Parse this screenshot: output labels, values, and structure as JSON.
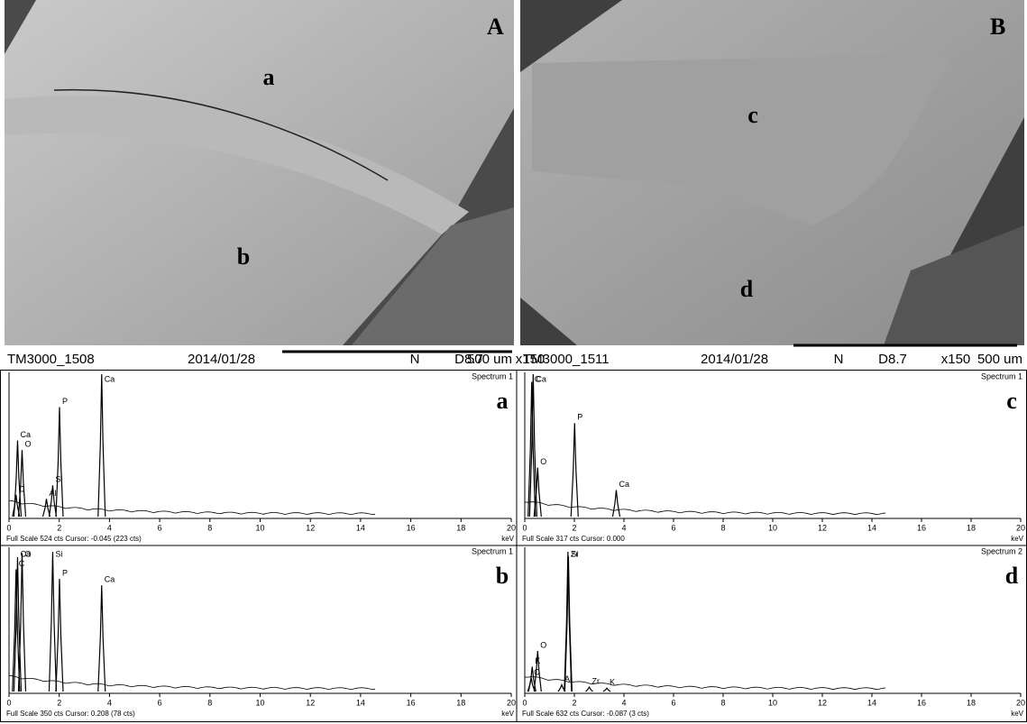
{
  "sem_panels": [
    {
      "label": "A",
      "regions": [
        "a",
        "b"
      ],
      "footer": [
        "TM3000_1508",
        "2014/01/28",
        "N",
        "D8.7",
        "x150",
        "500 um"
      ]
    },
    {
      "label": "B",
      "regions": [
        "c",
        "d"
      ],
      "footer": [
        "TM3000_1511",
        "2014/01/28",
        "N",
        "D8.7",
        "x150",
        "500 um"
      ]
    }
  ],
  "chart_data": [
    {
      "type": "spectrum",
      "panel": "a",
      "title": "Spectrum 1",
      "footer": "Full Scale 524 cts Cursor: -0.045  (223 cts)",
      "unit": "keV",
      "xlim": [
        0,
        20
      ],
      "xticks": [
        0,
        2,
        4,
        6,
        8,
        10,
        12,
        14,
        16,
        18,
        20
      ],
      "ylim": [
        0,
        524
      ],
      "x": [
        0.28,
        0.34,
        0.52,
        1.49,
        1.74,
        2.01,
        3.69
      ],
      "values": [
        80,
        280,
        245,
        65,
        115,
        403,
        524
      ],
      "annotations": [
        "C",
        "Ca",
        "O",
        "Al",
        "Si",
        "P",
        "Ca"
      ],
      "color": "#000000"
    },
    {
      "type": "spectrum",
      "panel": "c",
      "title": "Spectrum 1",
      "footer": "Full Scale 317 cts Cursor: 0.000",
      "unit": "keV",
      "xlim": [
        0,
        20
      ],
      "xticks": [
        0,
        2,
        4,
        6,
        8,
        10,
        12,
        14,
        16,
        18,
        20
      ],
      "ylim": [
        0,
        317
      ],
      "x": [
        0.28,
        0.34,
        0.52,
        2.01,
        3.69
      ],
      "values": [
        300,
        317,
        109,
        208,
        59
      ],
      "annotations": [
        "C",
        "Ca",
        "O",
        "P",
        "Ca"
      ],
      "color": "#000000"
    },
    {
      "type": "spectrum",
      "panel": "b",
      "title": "Spectrum 1",
      "footer": "Full Scale 350 cts Cursor: 0.208  (78 cts)",
      "unit": "keV",
      "xlim": [
        0,
        20
      ],
      "xticks": [
        0,
        2,
        4,
        6,
        8,
        10,
        12,
        14,
        16,
        18,
        20
      ],
      "ylim": [
        0,
        350
      ],
      "x": [
        0.28,
        0.34,
        0.52,
        1.74,
        2.01,
        3.69
      ],
      "values": [
        300,
        330,
        340,
        343,
        277,
        261
      ],
      "annotations": [
        "C",
        "Ca",
        "O",
        "Si",
        "P",
        "Ca"
      ],
      "color": "#000000"
    },
    {
      "type": "spectrum",
      "panel": "d",
      "title": "Spectrum 2",
      "footer": "Full Scale 632 cts Cursor: -0.087  (3 cts)",
      "unit": "keV",
      "xlim": [
        0,
        20
      ],
      "xticks": [
        0,
        2,
        4,
        6,
        8,
        10,
        12,
        14,
        16,
        18,
        20
      ],
      "ylim": [
        0,
        632
      ],
      "x": [
        0.26,
        0.3,
        0.52,
        1.49,
        1.74,
        1.76,
        2.6,
        3.31
      ],
      "values": [
        60,
        110,
        180,
        30,
        620,
        600,
        20,
        15
      ],
      "annotations": [
        "C",
        "K",
        "O",
        "Al",
        "Zr",
        "Si",
        "Zr",
        "K"
      ],
      "color": "#000000"
    }
  ]
}
